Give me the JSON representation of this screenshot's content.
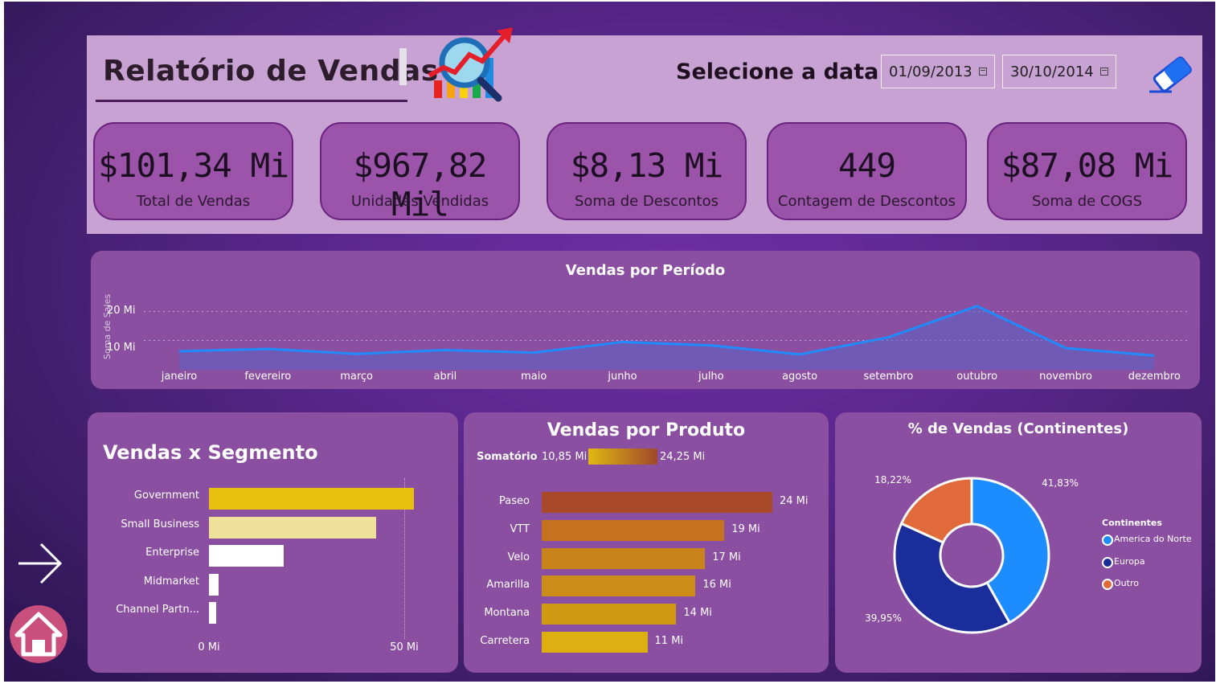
{
  "header": {
    "title": "Relatório de Vendas",
    "date_label": "Selecione a data",
    "date_start": "01/09/2013",
    "date_end": "30/10/2014"
  },
  "kpis": [
    {
      "value": "$101,34 Mi",
      "label": "Total de Vendas"
    },
    {
      "value": "$967,82 Mil",
      "label": "Unidades Vendidas"
    },
    {
      "value": "$8,13 Mi",
      "label": "Soma de Descontos"
    },
    {
      "value": "449",
      "label": "Contagem de Descontos"
    },
    {
      "value": "$87,08 Mi",
      "label": "Soma de COGS"
    }
  ],
  "colors": {
    "line": "#1f8bff",
    "segment_bars": [
      "#e8c010",
      "#efe09a",
      "#ffffff",
      "#ffffff",
      "#ffffff"
    ],
    "product_bars": [
      "#a84a2a",
      "#c4721e",
      "#c8841a",
      "#cc8e18",
      "#d09a14",
      "#dcb010"
    ],
    "donut": [
      "#1c8cff",
      "#1b2d9a",
      "#e06a3a"
    ]
  },
  "icons": {
    "report_logo": "chart-magnifier-icon",
    "eraser": "eraser-icon",
    "next": "arrow-right-icon",
    "home": "home-icon"
  },
  "chart_data": [
    {
      "type": "area",
      "title": "Vendas por Período",
      "ylabel": "Soma de Sales",
      "y_ticks": [
        "20 Mi",
        "10 Mi"
      ],
      "ylim": [
        0,
        25
      ],
      "categories": [
        "janeiro",
        "fevereiro",
        "março",
        "abril",
        "maio",
        "junho",
        "julho",
        "agosto",
        "setembro",
        "outubro",
        "novembro",
        "dezembro"
      ],
      "values": [
        6.4,
        7.2,
        5.5,
        6.8,
        5.9,
        9.6,
        8.4,
        5.3,
        11.2,
        22.0,
        7.5,
        4.9
      ],
      "grid": true
    },
    {
      "type": "bar",
      "title": "Vendas x Segmento",
      "categories": [
        "Government",
        "Small Business",
        "Enterprise",
        "Midmarket",
        "Channel Partn..."
      ],
      "values": [
        52.5,
        42.7,
        19.2,
        2.4,
        1.8
      ],
      "x_ticks": [
        "0 Mi",
        "50 Mi"
      ],
      "xlim": [
        0,
        55
      ]
    },
    {
      "type": "bar",
      "title": "Vendas por Produto",
      "legend_title": "Somatório",
      "legend_min": "10,85 Mi",
      "legend_max": "24,25 Mi",
      "categories": [
        "Paseo",
        "VTT",
        "Velo",
        "Amarilla",
        "Montana",
        "Carretera"
      ],
      "values": [
        24,
        19,
        17,
        16,
        14,
        11
      ],
      "data_labels": [
        "24 Mi",
        "19 Mi",
        "17 Mi",
        "16 Mi",
        "14 Mi",
        "11 Mi"
      ]
    },
    {
      "type": "pie",
      "title": "% de Vendas (Continentes)",
      "legend_title": "Continentes",
      "categories": [
        "America do Norte",
        "Europa",
        "Outro"
      ],
      "values": [
        41.83,
        39.95,
        18.22
      ],
      "data_labels": [
        "41,83%",
        "39,95%",
        "18,22%"
      ],
      "legend_position": "right"
    }
  ]
}
